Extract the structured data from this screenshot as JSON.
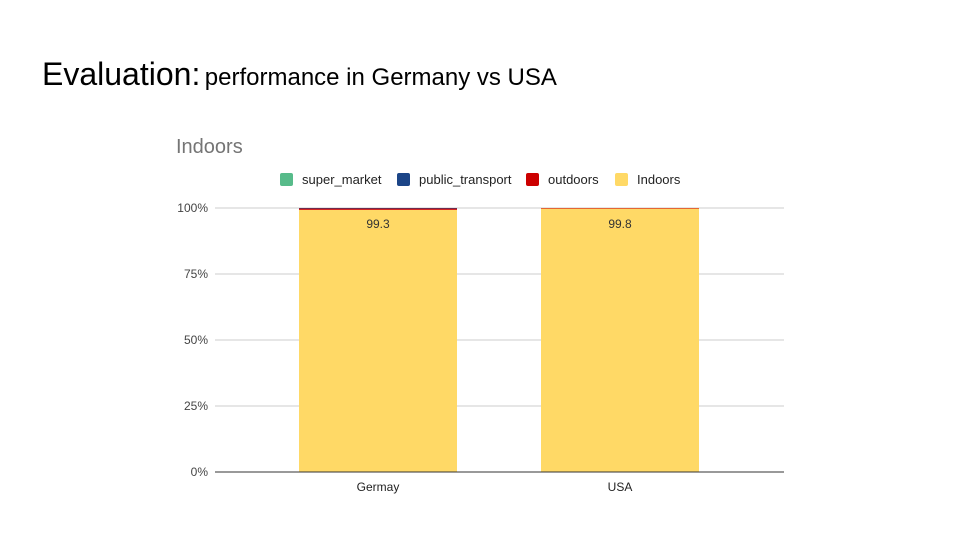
{
  "slide": {
    "title_main": "Evaluation:",
    "title_sub": "performance in Germany vs USA"
  },
  "chart_data": {
    "type": "bar",
    "stacked": true,
    "percent_stacked": true,
    "title": "Indoors",
    "categories": [
      "Germay",
      "USA"
    ],
    "series": [
      {
        "name": "super_market",
        "color": "#57bb8a",
        "values": [
          0.0,
          0.0
        ]
      },
      {
        "name": "public_transport",
        "color": "#1c4587",
        "values": [
          0.2,
          0.0
        ]
      },
      {
        "name": "outdoors",
        "color": "#cc0000",
        "values": [
          0.5,
          0.2
        ]
      },
      {
        "name": "Indoors",
        "color": "#ffd966",
        "values": [
          99.3,
          99.8
        ]
      }
    ],
    "data_labels": [
      "99.3",
      "99.8"
    ],
    "y_ticks": [
      "0%",
      "25%",
      "50%",
      "75%",
      "100%"
    ],
    "ylim": [
      0,
      100
    ],
    "grid": true,
    "legend_position": "top"
  }
}
